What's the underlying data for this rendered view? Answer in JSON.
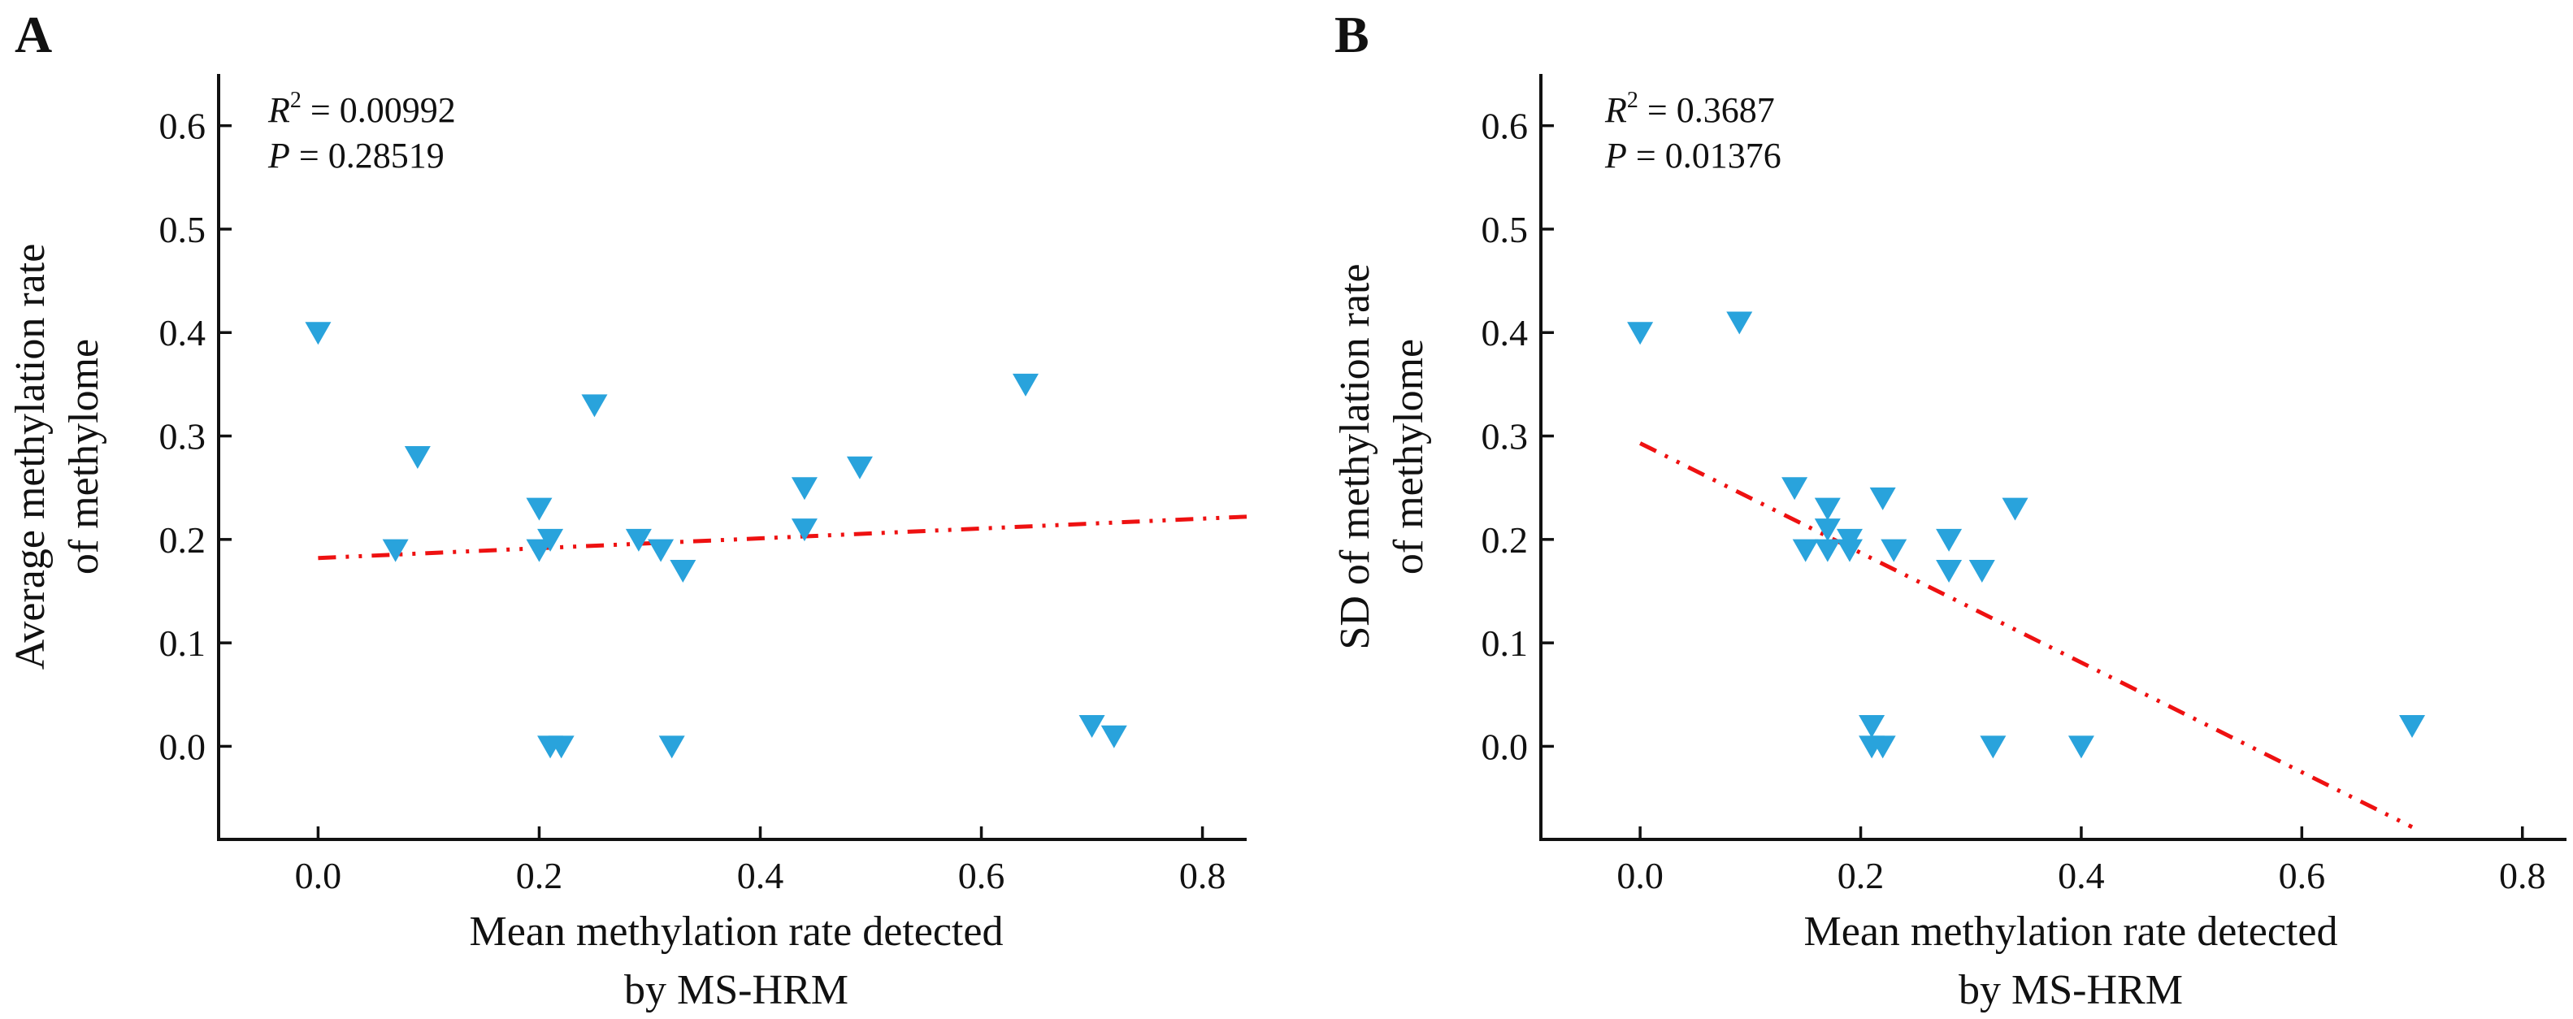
{
  "figure": {
    "marker_color": "#29a3dc",
    "fit_line_color": "#ee1111"
  },
  "chart_data": [
    {
      "panel": "A",
      "type": "scatter",
      "title": "",
      "xlabel": [
        "Mean methylation rate detected",
        "by MS-HRM"
      ],
      "ylabel": [
        "Average methylation rate",
        "of methylome"
      ],
      "xlim": [
        -0.09,
        0.84
      ],
      "ylim": [
        -0.09,
        0.65
      ],
      "xticks": [
        0.0,
        0.2,
        0.4,
        0.6,
        0.8
      ],
      "xtick_labels": [
        "0.0",
        "0.2",
        "0.4",
        "0.6",
        "0.8"
      ],
      "yticks": [
        0.0,
        0.1,
        0.2,
        0.3,
        0.4,
        0.5,
        0.6
      ],
      "ytick_labels": [
        "0.0",
        "0.1",
        "0.2",
        "0.3",
        "0.4",
        "0.5",
        "0.6"
      ],
      "grid": false,
      "marker": "triangle-down",
      "annotations": {
        "r2_label": "R",
        "r2_sup": "2",
        "r2_value": " = 0.00992",
        "p_label": "P",
        "p_value": " = 0.28519"
      },
      "points": [
        {
          "x": 0.0,
          "y": 0.4
        },
        {
          "x": 0.07,
          "y": 0.19
        },
        {
          "x": 0.09,
          "y": 0.28
        },
        {
          "x": 0.2,
          "y": 0.23
        },
        {
          "x": 0.2,
          "y": 0.19
        },
        {
          "x": 0.21,
          "y": 0.2
        },
        {
          "x": 0.21,
          "y": 0.0
        },
        {
          "x": 0.22,
          "y": 0.0
        },
        {
          "x": 0.25,
          "y": 0.33
        },
        {
          "x": 0.29,
          "y": 0.2
        },
        {
          "x": 0.31,
          "y": 0.19
        },
        {
          "x": 0.32,
          "y": 0.0
        },
        {
          "x": 0.33,
          "y": 0.17
        },
        {
          "x": 0.44,
          "y": 0.25
        },
        {
          "x": 0.44,
          "y": 0.21
        },
        {
          "x": 0.49,
          "y": 0.27
        },
        {
          "x": 0.64,
          "y": 0.35
        },
        {
          "x": 0.7,
          "y": 0.02
        },
        {
          "x": 0.72,
          "y": 0.01
        }
      ],
      "fit_line": {
        "style": "dash-dot-dot",
        "x": [
          0.0,
          0.84
        ],
        "y": [
          0.182,
          0.222
        ]
      }
    },
    {
      "panel": "B",
      "type": "scatter",
      "title": "",
      "xlabel": [
        "Mean methylation rate detected",
        "by MS-HRM"
      ],
      "ylabel": [
        "SD of methylation rate",
        "of methylome"
      ],
      "xlim": [
        -0.09,
        0.84
      ],
      "ylim": [
        -0.09,
        0.65
      ],
      "xticks": [
        0.0,
        0.2,
        0.4,
        0.6,
        0.8
      ],
      "xtick_labels": [
        "0.0",
        "0.2",
        "0.4",
        "0.6",
        "0.8"
      ],
      "yticks": [
        0.0,
        0.1,
        0.2,
        0.3,
        0.4,
        0.5,
        0.6
      ],
      "ytick_labels": [
        "0.0",
        "0.1",
        "0.2",
        "0.3",
        "0.4",
        "0.5",
        "0.6"
      ],
      "grid": false,
      "marker": "triangle-down",
      "annotations": {
        "r2_label": "R",
        "r2_sup": "2",
        "r2_value": " = 0.3687",
        "p_label": "P",
        "p_value": " = 0.01376"
      },
      "points": [
        {
          "x": 0.0,
          "y": 0.4
        },
        {
          "x": 0.09,
          "y": 0.41
        },
        {
          "x": 0.14,
          "y": 0.25
        },
        {
          "x": 0.15,
          "y": 0.19
        },
        {
          "x": 0.17,
          "y": 0.23
        },
        {
          "x": 0.17,
          "y": 0.21
        },
        {
          "x": 0.17,
          "y": 0.19
        },
        {
          "x": 0.19,
          "y": 0.2
        },
        {
          "x": 0.19,
          "y": 0.19
        },
        {
          "x": 0.21,
          "y": 0.02
        },
        {
          "x": 0.21,
          "y": 0.0
        },
        {
          "x": 0.22,
          "y": 0.0
        },
        {
          "x": 0.22,
          "y": 0.24
        },
        {
          "x": 0.23,
          "y": 0.19
        },
        {
          "x": 0.28,
          "y": 0.2
        },
        {
          "x": 0.28,
          "y": 0.17
        },
        {
          "x": 0.31,
          "y": 0.17
        },
        {
          "x": 0.32,
          "y": 0.0
        },
        {
          "x": 0.34,
          "y": 0.23
        },
        {
          "x": 0.4,
          "y": 0.0
        },
        {
          "x": 0.7,
          "y": 0.02
        }
      ],
      "fit_line": {
        "style": "dash-dot-dot",
        "x": [
          0.0,
          0.7
        ],
        "y": [
          0.293,
          -0.078
        ]
      }
    }
  ]
}
